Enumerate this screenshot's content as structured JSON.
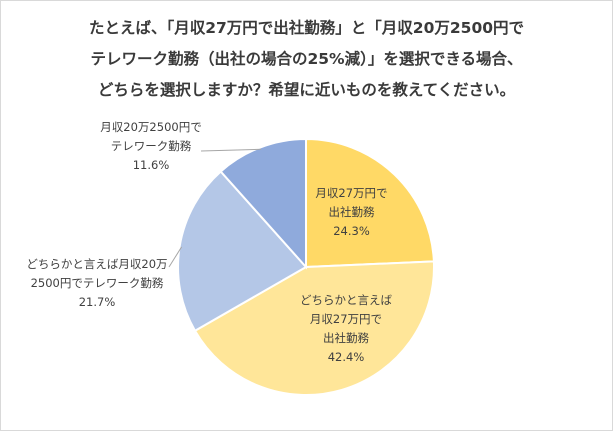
{
  "chart_data": {
    "type": "pie",
    "title_lines": [
      "たとえば、「月収27万円で出社勤務」と「月収20万2500円で",
      "テレワーク勤務（出社の場合の25%減）」を選択できる場合、",
      "どちらを選択しますか？希望に近いものを教えてください。"
    ],
    "slices": [
      {
        "label_lines": [
          "月収27万円で",
          "出社勤務"
        ],
        "value": 24.3,
        "value_text": "24.3%",
        "color": "#FFD966"
      },
      {
        "label_lines": [
          "どちらかと言えば",
          "月収27万円で",
          "出社勤務"
        ],
        "value": 42.4,
        "value_text": "42.4%",
        "color": "#FFE699"
      },
      {
        "label_lines": [
          "どちらかと言えば月収20万",
          "2500円でテレワーク勤務"
        ],
        "value": 21.7,
        "value_text": "21.7%",
        "color": "#B4C7E7"
      },
      {
        "label_lines": [
          "月収20万2500円で",
          "テレワーク勤務"
        ],
        "value": 11.6,
        "value_text": "11.6%",
        "color": "#8FAADC"
      }
    ],
    "start_angle_deg": 0,
    "direction": "clockwise"
  }
}
